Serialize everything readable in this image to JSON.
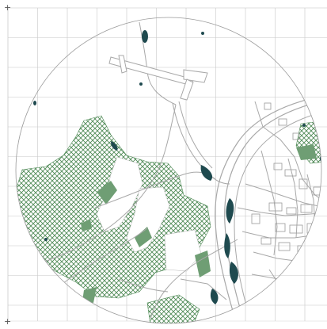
{
  "map": {
    "corner_mark": "+",
    "vertical_caption": "",
    "bottom_caption": "",
    "colors": {
      "grid": "#c8c8c8",
      "circle": "#9a9a9a",
      "road": "#a8a8a8",
      "woodland": "#4f8a56",
      "woodland_solid": "#6f9e74",
      "water": "#1f4a4f",
      "background": "#ffffff"
    }
  }
}
